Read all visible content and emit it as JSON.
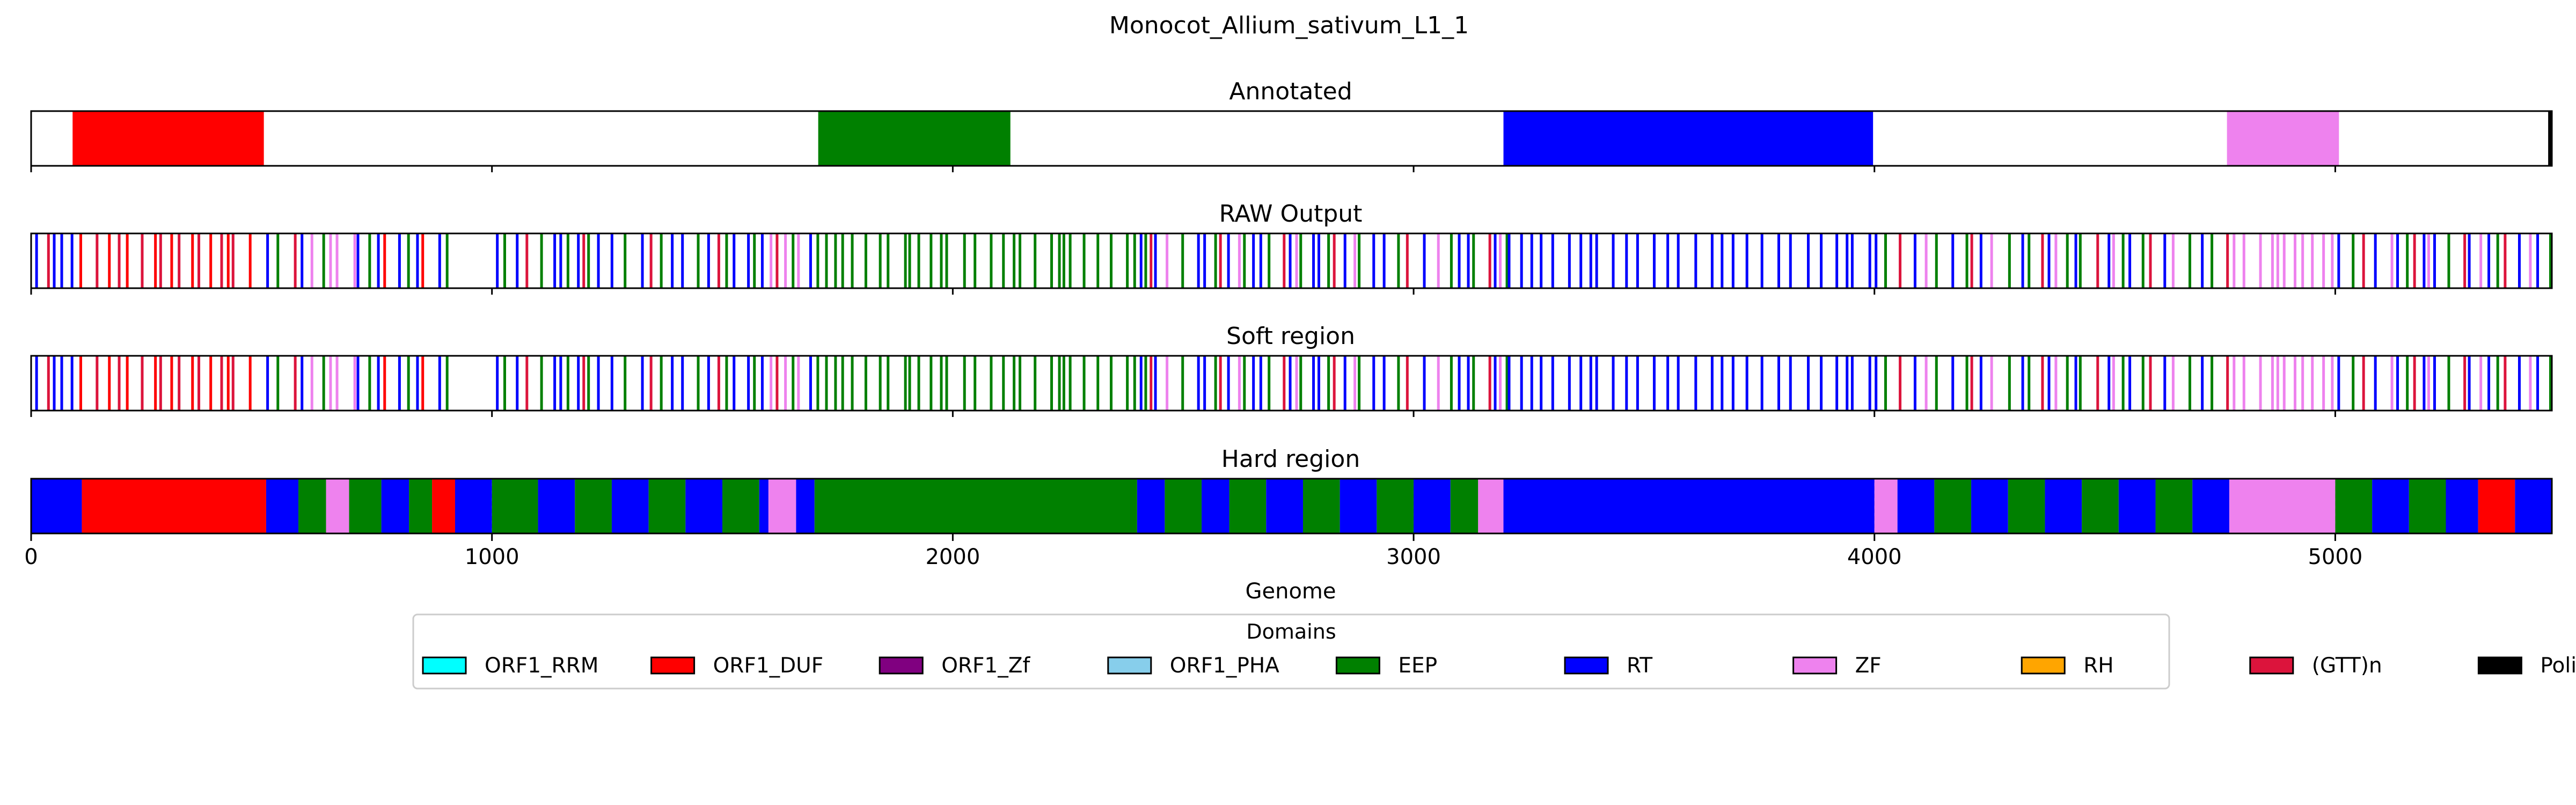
{
  "chart_data": {
    "type": "genome-track",
    "title": "Monocot_Allium_sativum_L1_1",
    "xlabel": "Genome",
    "xlim": [
      0,
      5470
    ],
    "xticks": [
      0,
      1000,
      2000,
      3000,
      4000,
      5000
    ],
    "grid": "dashed vertical gridlines on Hard region track",
    "legend": {
      "title": "Domains",
      "placement": "bottom-center",
      "entries": [
        {
          "name": "ORF1_RRM",
          "color": "#00ffff"
        },
        {
          "name": "ORF1_DUF",
          "color": "#ff0000"
        },
        {
          "name": "ORF1_Zf",
          "color": "#800080"
        },
        {
          "name": "ORF1_PHA",
          "color": "#87ceeb"
        },
        {
          "name": "EEP",
          "color": "#008000"
        },
        {
          "name": "RT",
          "color": "#0000ff"
        },
        {
          "name": "ZF",
          "color": "#ee82ee"
        },
        {
          "name": "RH",
          "color": "#ffa500"
        },
        {
          "name": "(GTT)n",
          "color": "#dc143c"
        },
        {
          "name": "PoliA",
          "color": "#000000"
        }
      ]
    },
    "tracks": [
      {
        "title": "Annotated",
        "segments": [
          {
            "domain": "ORF1_DUF",
            "start": 90,
            "end": 505
          },
          {
            "domain": "EEP",
            "start": 1708,
            "end": 2125
          },
          {
            "domain": "RT",
            "start": 3195,
            "end": 3997
          },
          {
            "domain": "ZF",
            "start": 4765,
            "end": 5008
          },
          {
            "domain": "PoliA",
            "start": 5462,
            "end": 5470
          }
        ]
      },
      {
        "title": "RAW Output",
        "regions": [
          {
            "start": 0,
            "end": 100,
            "pattern": [
              "RT",
              "(GTT)n",
              "RT",
              "RT"
            ]
          },
          {
            "start": 100,
            "end": 505,
            "pattern": [
              "ORF1_DUF",
              "(GTT)n"
            ]
          },
          {
            "start": 505,
            "end": 640,
            "pattern": [
              "RT",
              "EEP",
              "(GTT)n",
              "RT",
              "ZF",
              "EEP"
            ]
          },
          {
            "start": 640,
            "end": 700,
            "pattern": [
              "ZF"
            ]
          },
          {
            "start": 700,
            "end": 920,
            "pattern": [
              "RT",
              "EEP",
              "RT",
              "ORF1_DUF"
            ]
          },
          {
            "start": 1000,
            "end": 1700,
            "pattern": [
              "RT",
              "EEP",
              "RT",
              "(GTT)n",
              "EEP",
              "RT"
            ]
          },
          {
            "start": 1590,
            "end": 1680,
            "pattern": [
              "ZF"
            ]
          },
          {
            "start": 1700,
            "end": 2400,
            "pattern": [
              "EEP"
            ]
          },
          {
            "start": 2400,
            "end": 3200,
            "pattern": [
              "RT",
              "EEP",
              "(GTT)n",
              "RT",
              "ZF",
              "EEP",
              "RT"
            ]
          },
          {
            "start": 3200,
            "end": 3990,
            "pattern": [
              "RT"
            ]
          },
          {
            "start": 3990,
            "end": 4770,
            "pattern": [
              "RT",
              "EEP",
              "(GTT)n",
              "RT",
              "ZF",
              "EEP"
            ]
          },
          {
            "start": 4770,
            "end": 5000,
            "pattern": [
              "ZF"
            ]
          },
          {
            "start": 5000,
            "end": 5470,
            "pattern": [
              "RT",
              "EEP",
              "(GTT)n",
              "RT",
              "ZF"
            ]
          }
        ]
      },
      {
        "title": "Soft region",
        "same_as": "RAW Output"
      },
      {
        "title": "Hard region",
        "segments": [
          {
            "domain": "RT",
            "start": 0,
            "end": 110
          },
          {
            "domain": "ORF1_DUF",
            "start": 110,
            "end": 510
          },
          {
            "domain": "RT",
            "start": 510,
            "end": 580
          },
          {
            "domain": "EEP",
            "start": 580,
            "end": 640
          },
          {
            "domain": "ZF",
            "start": 640,
            "end": 690
          },
          {
            "domain": "EEP",
            "start": 690,
            "end": 760
          },
          {
            "domain": "RT",
            "start": 760,
            "end": 820
          },
          {
            "domain": "EEP",
            "start": 820,
            "end": 870
          },
          {
            "domain": "ORF1_DUF",
            "start": 870,
            "end": 920
          },
          {
            "domain": "RT",
            "start": 920,
            "end": 1000
          },
          {
            "domain": "EEP",
            "start": 1000,
            "end": 1100
          },
          {
            "domain": "RT",
            "start": 1100,
            "end": 1180
          },
          {
            "domain": "EEP",
            "start": 1180,
            "end": 1260
          },
          {
            "domain": "RT",
            "start": 1260,
            "end": 1340
          },
          {
            "domain": "EEP",
            "start": 1340,
            "end": 1420
          },
          {
            "domain": "RT",
            "start": 1420,
            "end": 1500
          },
          {
            "domain": "EEP",
            "start": 1500,
            "end": 1580
          },
          {
            "domain": "RT",
            "start": 1580,
            "end": 1600
          },
          {
            "domain": "ZF",
            "start": 1600,
            "end": 1660
          },
          {
            "domain": "RT",
            "start": 1660,
            "end": 1700
          },
          {
            "domain": "EEP",
            "start": 1700,
            "end": 2400
          },
          {
            "domain": "RT",
            "start": 2400,
            "end": 2460
          },
          {
            "domain": "EEP",
            "start": 2460,
            "end": 2540
          },
          {
            "domain": "RT",
            "start": 2540,
            "end": 2600
          },
          {
            "domain": "EEP",
            "start": 2600,
            "end": 2680
          },
          {
            "domain": "RT",
            "start": 2680,
            "end": 2760
          },
          {
            "domain": "EEP",
            "start": 2760,
            "end": 2840
          },
          {
            "domain": "RT",
            "start": 2840,
            "end": 2920
          },
          {
            "domain": "EEP",
            "start": 2920,
            "end": 3000
          },
          {
            "domain": "RT",
            "start": 3000,
            "end": 3080
          },
          {
            "domain": "EEP",
            "start": 3080,
            "end": 3140
          },
          {
            "domain": "ZF",
            "start": 3140,
            "end": 3195
          },
          {
            "domain": "RT",
            "start": 3195,
            "end": 4000
          },
          {
            "domain": "ZF",
            "start": 4000,
            "end": 4050
          },
          {
            "domain": "RT",
            "start": 4050,
            "end": 4130
          },
          {
            "domain": "EEP",
            "start": 4130,
            "end": 4210
          },
          {
            "domain": "RT",
            "start": 4210,
            "end": 4290
          },
          {
            "domain": "EEP",
            "start": 4290,
            "end": 4370
          },
          {
            "domain": "RT",
            "start": 4370,
            "end": 4450
          },
          {
            "domain": "EEP",
            "start": 4450,
            "end": 4530
          },
          {
            "domain": "RT",
            "start": 4530,
            "end": 4610
          },
          {
            "domain": "EEP",
            "start": 4610,
            "end": 4690
          },
          {
            "domain": "RT",
            "start": 4690,
            "end": 4770
          },
          {
            "domain": "ZF",
            "start": 4770,
            "end": 5000
          },
          {
            "domain": "EEP",
            "start": 5000,
            "end": 5080
          },
          {
            "domain": "RT",
            "start": 5080,
            "end": 5160
          },
          {
            "domain": "EEP",
            "start": 5160,
            "end": 5240
          },
          {
            "domain": "RT",
            "start": 5240,
            "end": 5310
          },
          {
            "domain": "ORF1_DUF",
            "start": 5310,
            "end": 5390
          },
          {
            "domain": "RT",
            "start": 5390,
            "end": 5470
          }
        ]
      }
    ]
  }
}
